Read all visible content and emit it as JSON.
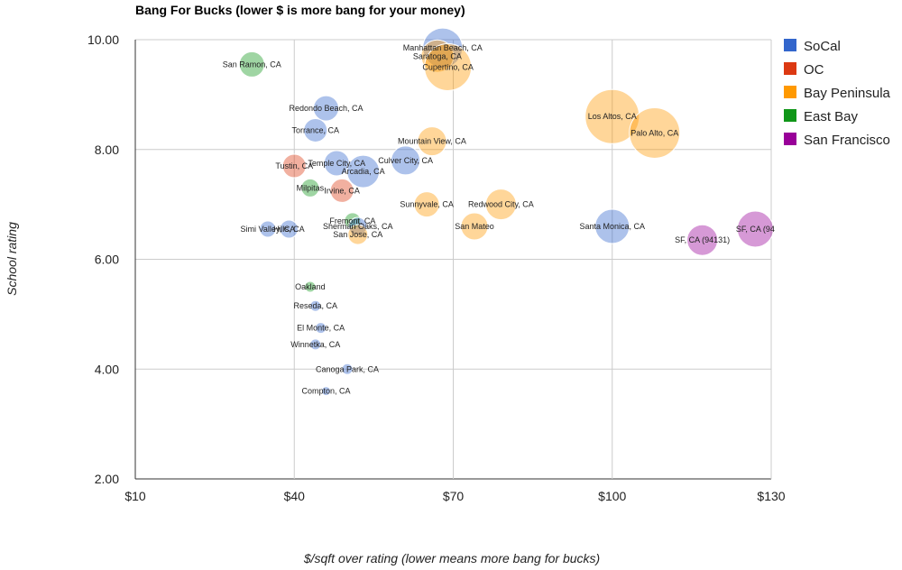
{
  "chart_data": {
    "type": "bubble",
    "title": "Bang For Bucks (lower $ is more bang for your money)",
    "xlabel": "$/sqft over rating (lower means more bang for bucks)",
    "ylabel": "School rating",
    "xlim": [
      10,
      130
    ],
    "ylim": [
      2,
      10
    ],
    "x_ticks": [
      10,
      40,
      70,
      100,
      130
    ],
    "x_tick_labels": [
      "$10",
      "$40",
      "$70",
      "$100",
      "$130"
    ],
    "y_ticks": [
      2,
      4,
      6,
      8,
      10
    ],
    "y_tick_labels": [
      "2.00",
      "4.00",
      "6.00",
      "8.00",
      "10.00"
    ],
    "legend_position": "right",
    "series": [
      {
        "name": "SoCal",
        "color": "#3366cc"
      },
      {
        "name": "OC",
        "color": "#dc3912"
      },
      {
        "name": "Bay Peninsula",
        "color": "#ff9900"
      },
      {
        "name": "East Bay",
        "color": "#109618"
      },
      {
        "name": "San Francisco",
        "color": "#990099"
      }
    ],
    "points": [
      {
        "label": "Manhattan Beach, CA",
        "x": 68,
        "y": 9.85,
        "size": 22,
        "series": "SoCal"
      },
      {
        "label": "Saratoga, CA",
        "x": 67,
        "y": 9.7,
        "size": 18,
        "series": "Bay Peninsula"
      },
      {
        "label": "Cupertino, CA",
        "x": 69,
        "y": 9.5,
        "size": 26,
        "series": "Bay Peninsula"
      },
      {
        "label": "San Ramon, CA",
        "x": 32,
        "y": 9.55,
        "size": 14,
        "series": "East Bay"
      },
      {
        "label": "Redondo Beach, CA",
        "x": 46,
        "y": 8.75,
        "size": 14,
        "series": "SoCal"
      },
      {
        "label": "Torrance, CA",
        "x": 44,
        "y": 8.35,
        "size": 13,
        "series": "SoCal"
      },
      {
        "label": "Los Altos, CA",
        "x": 100,
        "y": 8.6,
        "size": 30,
        "series": "Bay Peninsula"
      },
      {
        "label": "Palo Alto, CA",
        "x": 108,
        "y": 8.3,
        "size": 28,
        "series": "Bay Peninsula"
      },
      {
        "label": "Mountain View, CA",
        "x": 66,
        "y": 8.15,
        "size": 16,
        "series": "Bay Peninsula"
      },
      {
        "label": "Culver City, CA",
        "x": 61,
        "y": 7.8,
        "size": 16,
        "series": "SoCal"
      },
      {
        "label": "Temple City, CA",
        "x": 48,
        "y": 7.75,
        "size": 14,
        "series": "SoCal"
      },
      {
        "label": "Arcadia, CA",
        "x": 53,
        "y": 7.6,
        "size": 18,
        "series": "SoCal"
      },
      {
        "label": "Tustin, CA",
        "x": 40,
        "y": 7.7,
        "size": 13,
        "series": "OC"
      },
      {
        "label": "Milpitas",
        "x": 43,
        "y": 7.3,
        "size": 10,
        "series": "East Bay"
      },
      {
        "label": "Irvine, CA",
        "x": 49,
        "y": 7.25,
        "size": 13,
        "series": "OC"
      },
      {
        "label": "Sunnyvale, CA",
        "x": 65,
        "y": 7.0,
        "size": 14,
        "series": "Bay Peninsula"
      },
      {
        "label": "Redwood City, CA",
        "x": 79,
        "y": 7.0,
        "size": 17,
        "series": "Bay Peninsula"
      },
      {
        "label": "Fremont, CA",
        "x": 51,
        "y": 6.7,
        "size": 9,
        "series": "East Bay"
      },
      {
        "label": "Sherman Oaks, CA",
        "x": 52,
        "y": 6.6,
        "size": 10,
        "series": "SoCal"
      },
      {
        "label": "San Jose, CA",
        "x": 52,
        "y": 6.45,
        "size": 11,
        "series": "Bay Peninsula"
      },
      {
        "label": "San Mateo",
        "x": 74,
        "y": 6.6,
        "size": 15,
        "series": "Bay Peninsula"
      },
      {
        "label": "Simi Valley, CA",
        "x": 35,
        "y": 6.55,
        "size": 9,
        "series": "SoCal"
      },
      {
        "label": "Hills, CA",
        "x": 39,
        "y": 6.55,
        "size": 10,
        "series": "SoCal"
      },
      {
        "label": "Santa Monica, CA",
        "x": 100,
        "y": 6.6,
        "size": 19,
        "series": "SoCal"
      },
      {
        "label": "SF, CA (94",
        "x": 127,
        "y": 6.55,
        "size": 20,
        "series": "San Francisco"
      },
      {
        "label": "SF, CA (94131)",
        "x": 117,
        "y": 6.35,
        "size": 17,
        "series": "San Francisco"
      },
      {
        "label": "Oakland",
        "x": 43,
        "y": 5.5,
        "size": 6,
        "series": "East Bay"
      },
      {
        "label": "Reseda, CA",
        "x": 44,
        "y": 5.15,
        "size": 6,
        "series": "SoCal"
      },
      {
        "label": "El Monte, CA",
        "x": 45,
        "y": 4.75,
        "size": 6,
        "series": "SoCal"
      },
      {
        "label": "Winnetka, CA",
        "x": 44,
        "y": 4.45,
        "size": 6,
        "series": "SoCal"
      },
      {
        "label": "Canoga Park, CA",
        "x": 50,
        "y": 4.0,
        "size": 6,
        "series": "SoCal"
      },
      {
        "label": "Compton, CA",
        "x": 46,
        "y": 3.6,
        "size": 5,
        "series": "SoCal"
      }
    ]
  }
}
